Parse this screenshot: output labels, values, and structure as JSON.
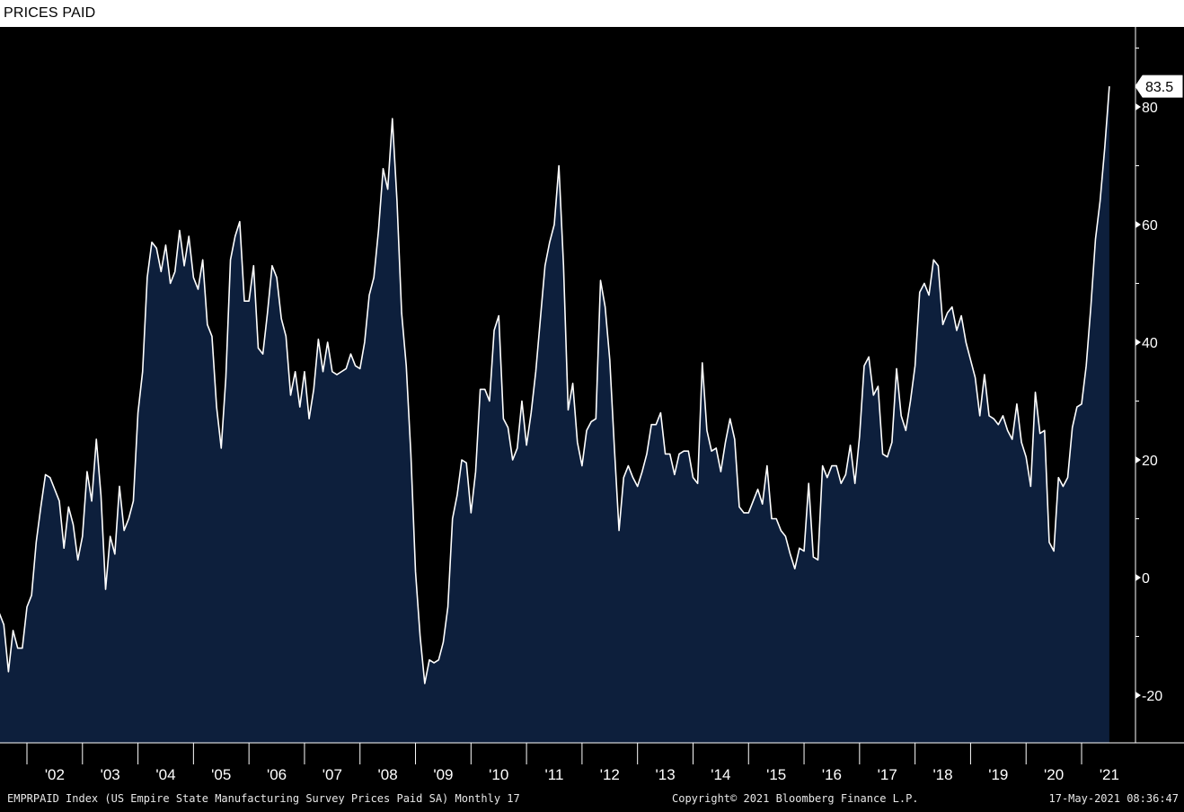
{
  "title": "PRICES PAID",
  "footer": {
    "left": "EMPRPAID Index (US Empire State Manufacturing Survey Prices Paid SA)  Monthly 17",
    "center": "Copyright© 2021 Bloomberg Finance L.P.",
    "right": "17-May-2021 08:36:47"
  },
  "colors": {
    "background": "#000000",
    "line": "#ffffff",
    "area": "#0d1f3c",
    "axis": "#ffffff"
  },
  "chart_data": {
    "type": "area",
    "title": "PRICES PAID",
    "xlabel": "",
    "ylabel": "",
    "ylim": [
      -28,
      93
    ],
    "yticks": [
      -20,
      0,
      20,
      40,
      60,
      80
    ],
    "xticks": [
      "'02",
      "'03",
      "'04",
      "'05",
      "'06",
      "'07",
      "'08",
      "'09",
      "'10",
      "'11",
      "'12",
      "'13",
      "'14",
      "'15",
      "'16",
      "'17",
      "'18",
      "'19",
      "'20",
      "'21"
    ],
    "last_value_label": "83.5",
    "grid": false,
    "series": [
      {
        "start": "2001-07",
        "frequency": "monthly",
        "values": [
          -6,
          -8,
          -16,
          -9,
          -12,
          -12,
          -5,
          -3,
          6,
          12,
          17.5,
          17,
          15,
          13,
          5,
          12,
          9,
          3,
          7,
          18,
          13,
          23.5,
          14,
          -2,
          7,
          4,
          15.5,
          8,
          10,
          13,
          28,
          35,
          51,
          57,
          56,
          52,
          56.5,
          50,
          52,
          59,
          53,
          58,
          51,
          49,
          54,
          43,
          41,
          29,
          22,
          34,
          54,
          58,
          60.5,
          47,
          47,
          53,
          39,
          38,
          45,
          53,
          51,
          44,
          41,
          31,
          35,
          29,
          35,
          27,
          32,
          40.5,
          35,
          40,
          35,
          34.5,
          35,
          35.5,
          38,
          36,
          35.5,
          40,
          48,
          51,
          59,
          69.5,
          66,
          78,
          64,
          45,
          36,
          21,
          1,
          -10,
          -18,
          -14,
          -14.5,
          -14,
          -11,
          -5,
          10,
          14,
          20,
          19.5,
          11,
          18,
          32,
          32,
          30,
          42,
          44.5,
          27,
          25.5,
          20,
          22,
          30,
          22.5,
          28,
          35,
          44,
          53,
          57,
          60,
          70,
          53,
          28.5,
          33,
          23,
          19,
          25,
          26.5,
          27,
          50.5,
          46,
          37,
          22,
          8,
          17,
          19,
          17,
          15.5,
          18,
          21,
          26,
          26,
          28,
          21,
          21,
          17.5,
          21,
          21.5,
          21.5,
          17,
          16,
          36.5,
          25,
          21.5,
          22,
          18,
          23,
          27,
          23.5,
          12,
          11,
          11,
          13,
          15,
          12.5,
          19,
          10,
          10,
          8,
          7,
          4,
          1.5,
          5,
          4.5,
          16,
          3.5,
          3,
          19,
          17,
          19,
          19,
          16,
          17.5,
          22.5,
          16,
          24,
          36,
          37.5,
          31,
          32.5,
          21,
          20.5,
          23,
          35.5,
          27.5,
          25,
          30,
          36,
          48.5,
          50,
          48,
          54,
          53,
          43,
          45,
          46,
          42,
          44.5,
          40,
          37,
          34,
          27.5,
          34.5,
          27.5,
          27,
          26,
          27.5,
          25,
          23.5,
          29.5,
          23,
          20.5,
          15.5,
          31.5,
          24.5,
          25,
          6,
          4.5,
          17,
          15.5,
          17,
          25.5,
          29,
          29.5,
          36,
          46,
          57.5,
          64,
          73,
          83.5
        ]
      }
    ]
  }
}
